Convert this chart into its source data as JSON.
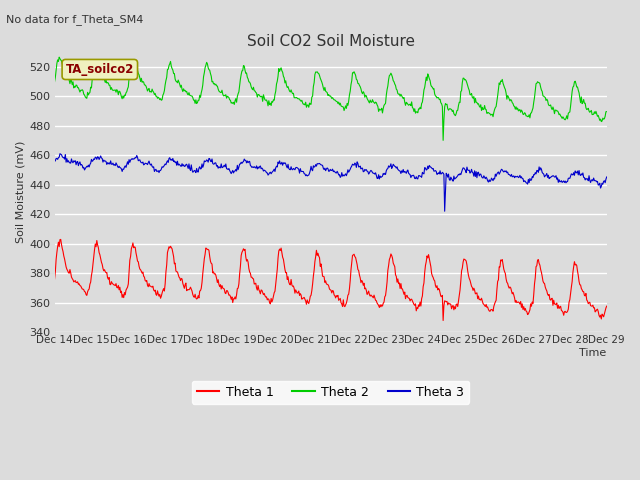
{
  "title": "Soil CO2 Soil Moisture",
  "subtitle": "No data for f_Theta_SM4",
  "ylabel": "Soil Moisture (mV)",
  "xlabel": "Time",
  "annotation": "TA_soilco2",
  "ylim": [
    340,
    530
  ],
  "yticks": [
    340,
    360,
    380,
    400,
    420,
    440,
    460,
    480,
    500,
    520
  ],
  "x_labels": [
    "Dec 14",
    "Dec 15",
    "Dec 16",
    "Dec 17",
    "Dec 18",
    "Dec 19",
    "Dec 20",
    "Dec 21",
    "Dec 22",
    "Dec 23",
    "Dec 24",
    "Dec 25",
    "Dec 26",
    "Dec 27",
    "Dec 28",
    "Dec 29"
  ],
  "plot_bg_color": "#dcdcdc",
  "grid_color": "#ffffff",
  "theta1_color": "#ff0000",
  "theta2_color": "#00cc00",
  "theta3_color": "#0000cc",
  "legend_labels": [
    "Theta 1",
    "Theta 2",
    "Theta 3"
  ],
  "fig_facecolor": "#dcdcdc",
  "title_fontsize": 11,
  "subtitle_fontsize": 8,
  "ylabel_fontsize": 8,
  "xlabel_fontsize": 8,
  "tick_fontsize": 8
}
